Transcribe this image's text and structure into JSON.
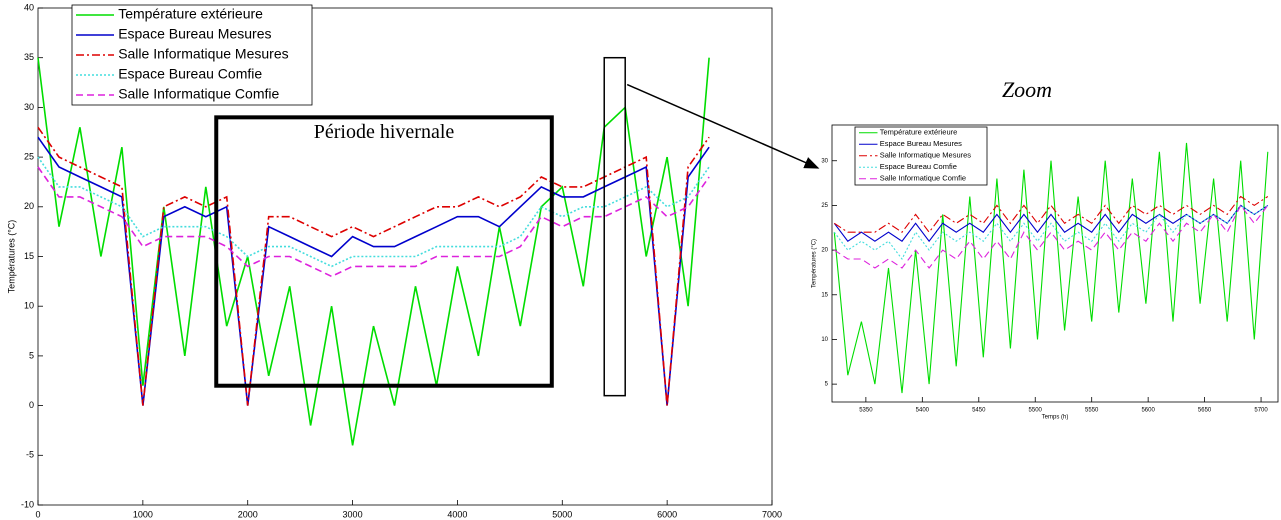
{
  "chart_data": [
    {
      "type": "line",
      "ylabel": "Températures (°C)",
      "x": [
        0,
        200,
        400,
        600,
        800,
        1000,
        1200,
        1400,
        1600,
        1800,
        2000,
        2200,
        2400,
        2600,
        2800,
        3000,
        3200,
        3400,
        3600,
        3800,
        4000,
        4200,
        4400,
        4600,
        4800,
        5000,
        5200,
        5400,
        5600,
        5800,
        6000,
        6200,
        6400
      ],
      "series": [
        {
          "name": "Température extérieure",
          "color": "#00dd00",
          "values": [
            35,
            18,
            28,
            15,
            26,
            2,
            20,
            5,
            22,
            8,
            15,
            3,
            12,
            -2,
            10,
            -4,
            8,
            0,
            12,
            2,
            14,
            5,
            18,
            8,
            20,
            22,
            12,
            28,
            30,
            15,
            25,
            10,
            35
          ]
        },
        {
          "name": "Espace Bureau Mesures",
          "color": "#0000cc",
          "values": [
            27,
            24,
            23,
            22,
            21,
            0,
            19,
            20,
            19,
            20,
            0,
            18,
            17,
            16,
            15,
            17,
            16,
            16,
            17,
            18,
            19,
            19,
            18,
            20,
            22,
            21,
            21,
            22,
            23,
            24,
            0,
            23,
            26
          ]
        },
        {
          "name": "Salle Informatique Mesures",
          "color": "#dd0000",
          "values": [
            28,
            25,
            24,
            23,
            22,
            0,
            20,
            21,
            20,
            21,
            0,
            19,
            19,
            18,
            17,
            18,
            17,
            18,
            19,
            20,
            20,
            21,
            20,
            21,
            23,
            22,
            22,
            23,
            24,
            25,
            0,
            24,
            27
          ]
        },
        {
          "name": "Espace Bureau Comfie",
          "color": "#44dddd",
          "values": [
            25,
            22,
            22,
            21,
            20,
            17,
            18,
            18,
            18,
            17,
            15,
            16,
            16,
            15,
            14,
            15,
            15,
            15,
            15,
            16,
            16,
            16,
            16,
            17,
            20,
            19,
            20,
            20,
            21,
            22,
            20,
            21,
            24
          ]
        },
        {
          "name": "Salle Informatique Comfie",
          "color": "#dd22dd",
          "values": [
            24,
            21,
            21,
            20,
            19,
            16,
            17,
            17,
            17,
            16,
            14,
            15,
            15,
            14,
            13,
            14,
            14,
            14,
            14,
            15,
            15,
            15,
            15,
            16,
            19,
            18,
            19,
            19,
            20,
            21,
            19,
            20,
            23
          ]
        }
      ],
      "xlim": [
        0,
        7000
      ],
      "xticks": [
        0,
        1000,
        2000,
        3000,
        4000,
        5000,
        6000,
        7000
      ],
      "ylim": [
        -10,
        40
      ],
      "yticks": [
        -10,
        -5,
        0,
        5,
        10,
        15,
        20,
        25,
        30,
        35,
        40
      ],
      "annotation": "Période hivernale"
    },
    {
      "type": "line",
      "title": "Zoom",
      "xlabel": "Temps (h)",
      "ylabel": "Températures (°C)",
      "x": [
        5322,
        5334,
        5346,
        5358,
        5370,
        5382,
        5394,
        5406,
        5418,
        5430,
        5442,
        5454,
        5466,
        5478,
        5490,
        5502,
        5514,
        5526,
        5538,
        5550,
        5562,
        5574,
        5586,
        5598,
        5610,
        5622,
        5634,
        5646,
        5658,
        5670,
        5682,
        5694,
        5706
      ],
      "series": [
        {
          "name": "Température extérieure",
          "color": "#00dd00",
          "values": [
            22,
            6,
            12,
            5,
            18,
            4,
            20,
            5,
            24,
            7,
            26,
            8,
            28,
            9,
            29,
            10,
            30,
            11,
            26,
            12,
            30,
            13,
            28,
            14,
            31,
            12,
            32,
            14,
            28,
            12,
            30,
            10,
            31
          ]
        },
        {
          "name": "Espace Bureau Mesures",
          "color": "#0000cc",
          "values": [
            23,
            21,
            22,
            21,
            22,
            21,
            23,
            21,
            23,
            22,
            23,
            22,
            24,
            22,
            24,
            22,
            24,
            22,
            23,
            22,
            24,
            22,
            24,
            23,
            24,
            23,
            24,
            23,
            24,
            23,
            25,
            24,
            25
          ]
        },
        {
          "name": "Salle Informatique Mesures",
          "color": "#dd0000",
          "values": [
            23,
            22,
            22,
            22,
            23,
            22,
            24,
            22,
            24,
            23,
            24,
            23,
            25,
            23,
            25,
            23,
            25,
            23,
            24,
            23,
            25,
            23,
            25,
            24,
            25,
            24,
            25,
            24,
            25,
            24,
            26,
            25,
            26
          ]
        },
        {
          "name": "Espace Bureau Comfie",
          "color": "#44dddd",
          "values": [
            22,
            20,
            21,
            20,
            21,
            19,
            22,
            20,
            22,
            21,
            22,
            21,
            23,
            21,
            23,
            21,
            23,
            21,
            22,
            21,
            23,
            21,
            23,
            22,
            24,
            22,
            24,
            23,
            24,
            23,
            25,
            24,
            25
          ]
        },
        {
          "name": "Salle Informatique Comfie",
          "color": "#dd22dd",
          "values": [
            20,
            19,
            19,
            18,
            19,
            18,
            20,
            18,
            20,
            19,
            21,
            19,
            21,
            19,
            22,
            20,
            22,
            20,
            21,
            20,
            22,
            20,
            22,
            21,
            23,
            21,
            23,
            22,
            24,
            22,
            25,
            23,
            25
          ]
        }
      ],
      "xlim": [
        5320,
        5715
      ],
      "xticks": [
        5350,
        5400,
        5450,
        5500,
        5550,
        5600,
        5650,
        5700
      ],
      "ylim": [
        3,
        34
      ],
      "yticks": [
        5,
        10,
        15,
        20,
        25,
        30
      ]
    }
  ]
}
